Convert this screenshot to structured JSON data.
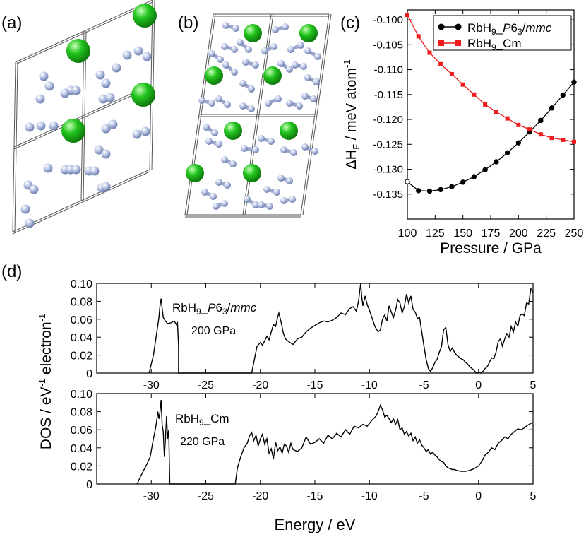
{
  "panel_labels": {
    "a": "(a)",
    "b": "(b)",
    "c": "(c)",
    "d": "(d)"
  },
  "colors": {
    "rb_atom": "#22c41e",
    "h_atom": "#b8c4e4",
    "phase_p63mmc": "#000000",
    "phase_cm": "#ee1c1c",
    "cell_edge": "#555555"
  },
  "chart_data": [
    {
      "type": "line",
      "panel": "c",
      "xlabel": "Pressure / GPa",
      "ylabel_parts": {
        "prefix": "ΔH",
        "sub": "F",
        "rest": " / meV atom",
        "sup": "-1"
      },
      "xlim": [
        100,
        250
      ],
      "ylim": [
        -0.14,
        -0.098
      ],
      "xticks": [
        100,
        125,
        150,
        175,
        200,
        225,
        250
      ],
      "yticks": [
        -0.1,
        -0.105,
        -0.11,
        -0.115,
        -0.12,
        -0.125,
        -0.13,
        -0.135
      ],
      "grid": false,
      "legend_position": "top-right",
      "series": [
        {
          "name_parts": {
            "a": "RbH",
            "sub": "9",
            "b": "_",
            "italic": "P",
            "c": "6",
            "sub2": "3",
            "d": "/",
            "italic2": "mmc"
          },
          "marker": "circle",
          "color": "#000000",
          "x": [
            100,
            110,
            120,
            130,
            140,
            150,
            160,
            170,
            180,
            190,
            200,
            210,
            220,
            230,
            240,
            250
          ],
          "y": [
            -0.1325,
            -0.1343,
            -0.1344,
            -0.1341,
            -0.1335,
            -0.1326,
            -0.1315,
            -0.1301,
            -0.1285,
            -0.1267,
            -0.1247,
            -0.1225,
            -0.1202,
            -0.1177,
            -0.1151,
            -0.1125
          ]
        },
        {
          "name_parts": {
            "a": "RbH",
            "sub": "9",
            "b": "_Cm"
          },
          "marker": "square",
          "color": "#ee1c1c",
          "x": [
            100,
            110,
            120,
            130,
            140,
            150,
            160,
            170,
            180,
            190,
            200,
            210,
            220,
            230,
            240,
            250
          ],
          "y": [
            -0.099,
            -0.1033,
            -0.1066,
            -0.1089,
            -0.1109,
            -0.113,
            -0.115,
            -0.117,
            -0.1185,
            -0.1198,
            -0.1211,
            -0.122,
            -0.123,
            -0.1237,
            -0.1241,
            -0.1245
          ]
        }
      ]
    },
    {
      "type": "line",
      "panel": "d-top",
      "label_parts": {
        "a": "RbH",
        "sub": "9",
        "b": "_",
        "italic": "P",
        "c": "6",
        "sub2": "3",
        "d": "/",
        "italic2": "mmc"
      },
      "pressure_label": "200 GPa",
      "xlim": [
        -35,
        5
      ],
      "ylim": [
        0,
        0.1
      ],
      "xticks": [
        -30,
        -25,
        -20,
        -15,
        -10,
        -5,
        0,
        5
      ],
      "yticks": [
        0,
        0.02,
        0.04,
        0.06,
        0.08,
        0.1
      ],
      "series": [
        {
          "x": [
            -30.2,
            -29.8,
            -29.5,
            -29.3,
            -29.2,
            -29.1,
            -29.0,
            -28.9,
            -28.7,
            -28.5,
            -28.2,
            -27.9,
            -27.7,
            -27.6,
            -27.5,
            -27.5,
            -20.8,
            -20.6,
            -20.3,
            -20.0,
            -19.8,
            -19.6,
            -19.4,
            -19.2,
            -19.0,
            -18.8,
            -18.6,
            -18.4,
            -18.3,
            -18.1,
            -17.9,
            -17.7,
            -17.4,
            -17.0,
            -16.6,
            -16.2,
            -15.8,
            -15.4,
            -15.0,
            -14.6,
            -14.2,
            -13.8,
            -13.4,
            -13.0,
            -12.6,
            -12.2,
            -11.8,
            -11.5,
            -11.2,
            -11.0,
            -10.8,
            -10.7,
            -10.6,
            -10.4,
            -10.2,
            -10.0,
            -9.8,
            -9.5,
            -9.2,
            -9.0,
            -8.8,
            -8.6,
            -8.4,
            -8.2,
            -8.0,
            -7.8,
            -7.6,
            -7.4,
            -7.2,
            -7.0,
            -6.8,
            -6.6,
            -6.4,
            -6.2,
            -6.0,
            -5.8,
            -5.6,
            -5.4,
            -5.2,
            -5.0,
            -4.8,
            -4.6,
            -4.4,
            -4.2,
            -4.0,
            -3.8,
            -3.6,
            -3.4,
            -3.2,
            -3.0,
            -2.8,
            -2.6,
            -2.4,
            -2.2,
            -2.0,
            -1.8,
            -1.6,
            -1.4,
            -1.2,
            -1.0,
            -0.8,
            -0.6,
            -0.4,
            -0.2,
            0.0,
            0.2,
            0.4,
            0.6,
            0.8,
            1.0,
            1.2,
            1.4,
            1.6,
            1.8,
            2.0,
            2.2,
            2.4,
            2.6,
            2.8,
            3.0,
            3.2,
            3.4,
            3.6,
            3.8,
            4.0,
            4.2,
            4.4,
            4.6,
            4.8,
            5.0
          ],
          "y": [
            0.0,
            0.02,
            0.045,
            0.062,
            0.075,
            0.083,
            0.072,
            0.062,
            0.058,
            0.055,
            0.056,
            0.058,
            0.054,
            0.057,
            0.03,
            0.0,
            0.0,
            0.012,
            0.03,
            0.034,
            0.031,
            0.036,
            0.041,
            0.037,
            0.046,
            0.054,
            0.052,
            0.063,
            0.067,
            0.057,
            0.045,
            0.038,
            0.035,
            0.032,
            0.038,
            0.04,
            0.046,
            0.05,
            0.053,
            0.056,
            0.058,
            0.057,
            0.059,
            0.062,
            0.067,
            0.065,
            0.072,
            0.074,
            0.069,
            0.08,
            0.1,
            0.085,
            0.075,
            0.086,
            0.076,
            0.07,
            0.063,
            0.052,
            0.046,
            0.048,
            0.06,
            0.065,
            0.058,
            0.075,
            0.068,
            0.062,
            0.07,
            0.082,
            0.078,
            0.067,
            0.074,
            0.088,
            0.078,
            0.086,
            0.071,
            0.068,
            0.061,
            0.062,
            0.046,
            0.03,
            0.015,
            0.005,
            0.002,
            0.006,
            0.012,
            0.015,
            0.023,
            0.029,
            0.048,
            0.051,
            0.032,
            0.024,
            0.028,
            0.023,
            0.02,
            0.018,
            0.016,
            0.015,
            0.012,
            0.01,
            0.007,
            0.005,
            0.003,
            0.0,
            0.001,
            0.0,
            0.002,
            0.005,
            0.007,
            0.012,
            0.017,
            0.016,
            0.023,
            0.035,
            0.038,
            0.03,
            0.038,
            0.044,
            0.04,
            0.052,
            0.046,
            0.057,
            0.052,
            0.064,
            0.066,
            0.064,
            0.078,
            0.077,
            0.094,
            0.09
          ]
        }
      ]
    },
    {
      "type": "line",
      "panel": "d-bottom",
      "label_parts": {
        "a": "RbH",
        "sub": "9",
        "b": "_Cm"
      },
      "pressure_label": "220 GPa",
      "xlabel": "Energy / eV",
      "ylabel_parts": {
        "prefix": "DOS / eV",
        "sup": "-1",
        "rest": " electron",
        "sup2": "-1"
      },
      "xlim": [
        -35,
        5
      ],
      "ylim": [
        0,
        0.1
      ],
      "xticks": [
        -30,
        -25,
        -20,
        -15,
        -10,
        -5,
        0,
        5
      ],
      "yticks": [
        0,
        0.02,
        0.04,
        0.06,
        0.08,
        0.1
      ],
      "series": [
        {
          "x": [
            -31.3,
            -31.0,
            -30.7,
            -30.4,
            -30.1,
            -29.8,
            -29.6,
            -29.5,
            -29.4,
            -29.3,
            -29.2,
            -29.1,
            -29.0,
            -28.9,
            -28.8,
            -28.7,
            -28.6,
            -28.5,
            -28.4,
            -28.35,
            -28.3,
            -22.3,
            -22.1,
            -21.8,
            -21.5,
            -21.2,
            -21.0,
            -20.8,
            -20.6,
            -20.4,
            -20.2,
            -20.0,
            -19.8,
            -19.6,
            -19.4,
            -19.2,
            -19.0,
            -18.8,
            -18.6,
            -18.4,
            -18.2,
            -18.0,
            -17.8,
            -17.6,
            -17.4,
            -17.2,
            -17.0,
            -16.6,
            -16.2,
            -15.8,
            -15.4,
            -15.0,
            -14.6,
            -14.2,
            -13.8,
            -13.4,
            -13.0,
            -12.6,
            -12.2,
            -11.8,
            -11.4,
            -11.0,
            -10.6,
            -10.2,
            -9.8,
            -9.4,
            -9.2,
            -9.0,
            -8.8,
            -8.6,
            -8.4,
            -8.2,
            -8.0,
            -7.8,
            -7.6,
            -7.4,
            -7.2,
            -7.0,
            -6.8,
            -6.6,
            -6.4,
            -6.2,
            -6.0,
            -5.8,
            -5.6,
            -5.4,
            -5.2,
            -5.0,
            -4.8,
            -4.6,
            -4.4,
            -4.2,
            -4.0,
            -3.8,
            -3.6,
            -3.4,
            -3.2,
            -3.0,
            -2.8,
            -2.6,
            -2.4,
            -2.2,
            -2.0,
            -1.6,
            -1.2,
            -0.8,
            -0.4,
            0.0,
            0.3,
            0.6,
            0.9,
            1.2,
            1.5,
            1.8,
            2.1,
            2.4,
            2.7,
            3.0,
            3.3,
            3.6,
            3.9,
            4.2,
            4.5,
            4.8,
            5.0
          ],
          "y": [
            0.0,
            0.008,
            0.015,
            0.022,
            0.03,
            0.05,
            0.062,
            0.07,
            0.08,
            0.072,
            0.08,
            0.093,
            0.065,
            0.058,
            0.03,
            0.05,
            0.075,
            0.05,
            0.06,
            0.03,
            0.0,
            0.0,
            0.018,
            0.03,
            0.04,
            0.045,
            0.053,
            0.057,
            0.048,
            0.054,
            0.042,
            0.05,
            0.055,
            0.044,
            0.05,
            0.034,
            0.039,
            0.028,
            0.046,
            0.037,
            0.041,
            0.034,
            0.044,
            0.042,
            0.035,
            0.045,
            0.038,
            0.036,
            0.04,
            0.052,
            0.044,
            0.046,
            0.05,
            0.045,
            0.054,
            0.05,
            0.056,
            0.052,
            0.06,
            0.055,
            0.064,
            0.062,
            0.066,
            0.064,
            0.07,
            0.075,
            0.08,
            0.087,
            0.082,
            0.074,
            0.076,
            0.072,
            0.068,
            0.072,
            0.066,
            0.071,
            0.06,
            0.062,
            0.055,
            0.058,
            0.053,
            0.056,
            0.048,
            0.052,
            0.045,
            0.049,
            0.043,
            0.04,
            0.036,
            0.038,
            0.033,
            0.035,
            0.032,
            0.03,
            0.027,
            0.025,
            0.024,
            0.02,
            0.018,
            0.017,
            0.016,
            0.016,
            0.015,
            0.014,
            0.014,
            0.015,
            0.017,
            0.02,
            0.025,
            0.032,
            0.035,
            0.04,
            0.038,
            0.045,
            0.048,
            0.052,
            0.05,
            0.055,
            0.058,
            0.061,
            0.06,
            0.062,
            0.065,
            0.067,
            0.068
          ]
        }
      ]
    }
  ]
}
